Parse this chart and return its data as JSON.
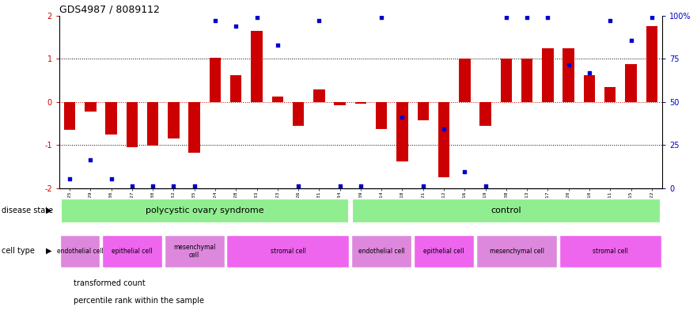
{
  "title": "GDS4987 / 8089112",
  "samples": [
    "GSM1174425",
    "GSM1174429",
    "GSM1174436",
    "GSM1174427",
    "GSM1174430",
    "GSM1174432",
    "GSM1174435",
    "GSM1174424",
    "GSM1174428",
    "GSM1174433",
    "GSM1174423",
    "GSM1174426",
    "GSM1174431",
    "GSM1174434",
    "GSM1174409",
    "GSM1174414",
    "GSM1174418",
    "GSM1174421",
    "GSM1174412",
    "GSM1174416",
    "GSM1174419",
    "GSM1174408",
    "GSM1174413",
    "GSM1174417",
    "GSM1174420",
    "GSM1174410",
    "GSM1174411",
    "GSM1174415",
    "GSM1174422"
  ],
  "bar_values": [
    -0.65,
    -0.22,
    -0.75,
    -1.05,
    -1.02,
    -0.85,
    -1.18,
    1.02,
    0.62,
    1.65,
    0.12,
    -0.55,
    0.28,
    -0.08,
    -0.05,
    -0.62,
    -1.38,
    -0.42,
    -1.75,
    1.0,
    -0.55,
    1.0,
    1.0,
    1.25,
    1.25,
    0.62,
    0.35,
    0.88,
    1.75
  ],
  "blue_values": [
    -1.78,
    -1.35,
    -1.78,
    -1.95,
    -1.95,
    -1.95,
    -1.95,
    1.88,
    1.75,
    1.95,
    1.32,
    -1.95,
    1.88,
    -1.95,
    -1.95,
    1.95,
    -0.35,
    -1.95,
    -0.62,
    -1.62,
    -1.95,
    1.95,
    1.95,
    1.95,
    0.85,
    0.68,
    1.88,
    1.42,
    1.95
  ],
  "disease_groups": [
    {
      "label": "polycystic ovary syndrome",
      "start": 0,
      "end": 14
    },
    {
      "label": "control",
      "start": 14,
      "end": 29
    }
  ],
  "cell_groups": [
    {
      "label": "endothelial cell",
      "start": 0,
      "end": 2
    },
    {
      "label": "epithelial cell",
      "start": 2,
      "end": 5
    },
    {
      "label": "mesenchymal\ncell",
      "start": 5,
      "end": 8
    },
    {
      "label": "stromal cell",
      "start": 8,
      "end": 14
    },
    {
      "label": "endothelial cell",
      "start": 14,
      "end": 17
    },
    {
      "label": "epithelial cell",
      "start": 17,
      "end": 20
    },
    {
      "label": "mesenchymal cell",
      "start": 20,
      "end": 24
    },
    {
      "label": "stromal cell",
      "start": 24,
      "end": 29
    }
  ],
  "cell_colors": [
    "#DD88DD",
    "#EE66EE",
    "#DD88DD",
    "#EE66EE",
    "#DD88DD",
    "#EE66EE",
    "#DD88DD",
    "#EE66EE"
  ],
  "disease_color": "#90EE90",
  "bar_color": "#CC0000",
  "blue_color": "#0000CC",
  "left_ytick_labels": [
    "-2",
    "-1",
    "0",
    "1",
    "2"
  ],
  "left_ytick_vals": [
    -2,
    -1,
    0,
    1,
    2
  ],
  "right_ytick_labels": [
    "0",
    "25",
    "50",
    "75",
    "100%"
  ],
  "right_ytick_vals": [
    -2,
    -1,
    0,
    1,
    2
  ],
  "legend_items": [
    {
      "color": "#CC0000",
      "label": "transformed count"
    },
    {
      "color": "#0000CC",
      "label": "percentile rank within the sample"
    }
  ]
}
